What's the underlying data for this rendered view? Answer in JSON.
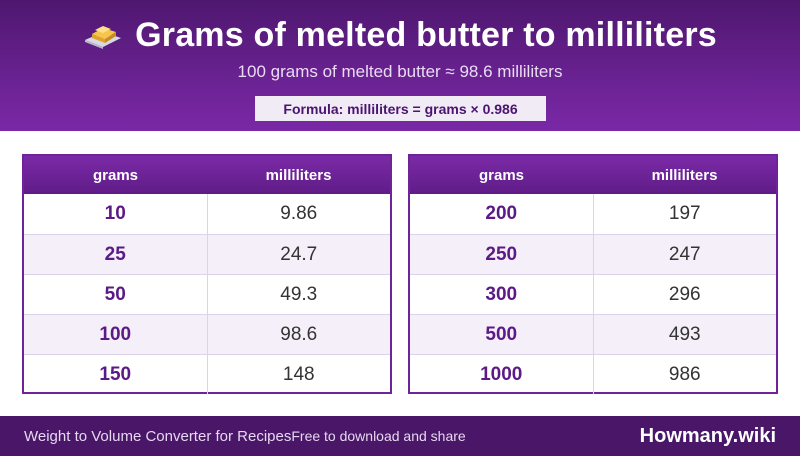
{
  "header": {
    "icon": "butter-icon",
    "title": "Grams of melted butter to milliliters",
    "subtitle": "100 grams of melted butter ≈ 98.6 milliliters",
    "formula": "Formula: milliliters = grams × 0.986"
  },
  "tables": [
    {
      "columns": [
        "grams",
        "milliliters"
      ],
      "rows": [
        {
          "grams": "10",
          "milliliters": "9.86"
        },
        {
          "grams": "25",
          "milliliters": "24.7"
        },
        {
          "grams": "50",
          "milliliters": "49.3"
        },
        {
          "grams": "100",
          "milliliters": "98.6"
        },
        {
          "grams": "150",
          "milliliters": "148"
        }
      ]
    },
    {
      "columns": [
        "grams",
        "milliliters"
      ],
      "rows": [
        {
          "grams": "200",
          "milliliters": "197"
        },
        {
          "grams": "250",
          "milliliters": "247"
        },
        {
          "grams": "300",
          "milliliters": "296"
        },
        {
          "grams": "500",
          "milliliters": "493"
        },
        {
          "grams": "1000",
          "milliliters": "986"
        }
      ]
    }
  ],
  "footer": {
    "tagline": "Weight to Volume Converter for Recipes",
    "note": "Free to download and share",
    "brand": "Howmany.wiki"
  },
  "colors": {
    "header": "#6a2292",
    "footer": "#4a1668",
    "accent_text": "#5b1a86"
  }
}
